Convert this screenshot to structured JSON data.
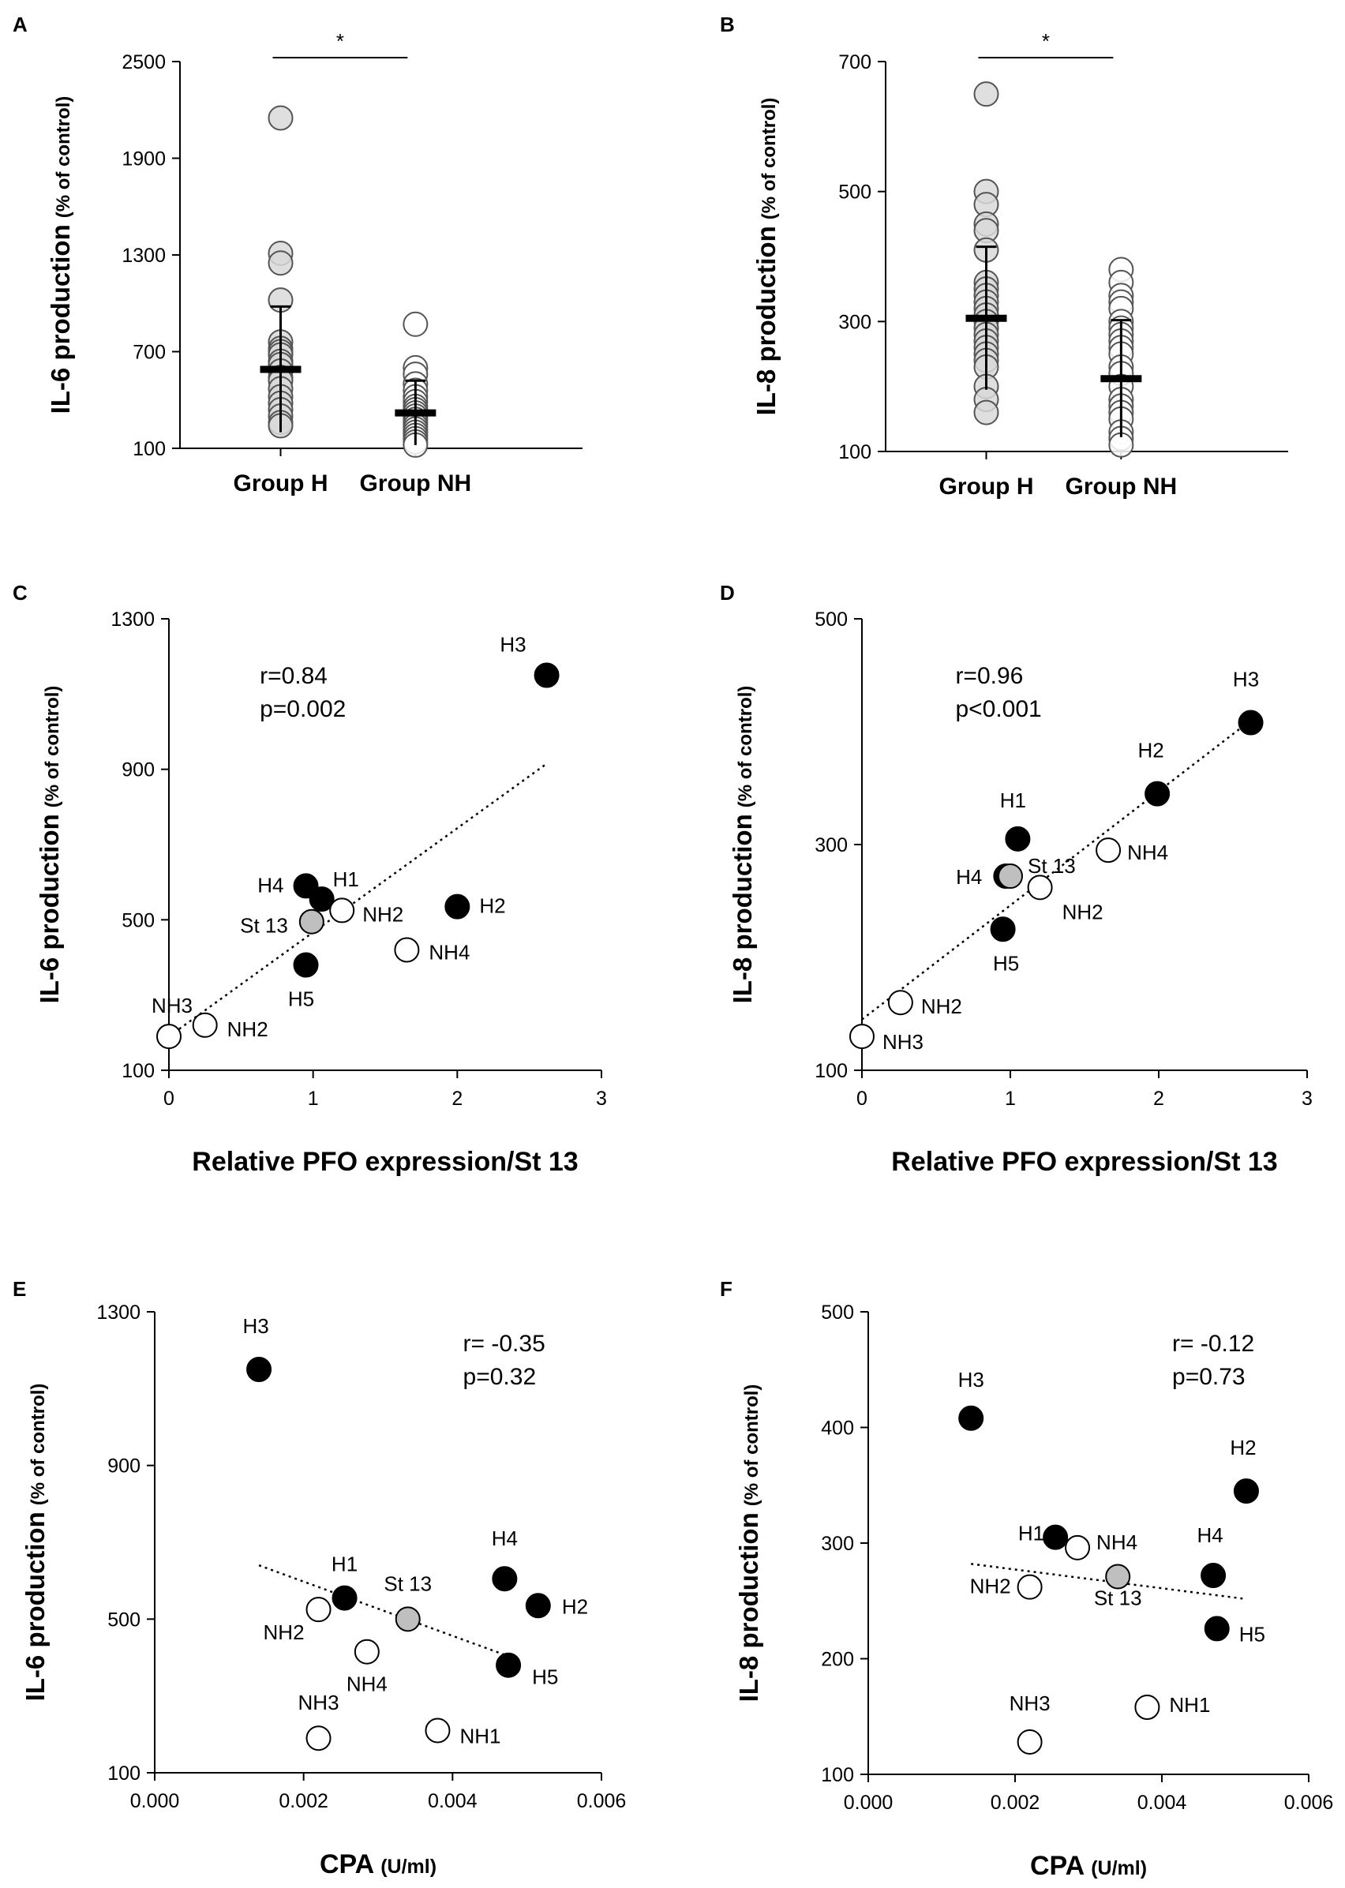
{
  "chart_data": [
    {
      "id": "A",
      "type": "scatter",
      "panel_label": "A",
      "ylabel": "IL-6 production",
      "ylabel_sub": "(% of control)",
      "yticks": [
        "2500",
        "1900",
        "1300",
        "700",
        "100"
      ],
      "ylim": [
        100,
        2500
      ],
      "categories": [
        "Group H",
        "Group NH"
      ],
      "significance": "*",
      "series": [
        {
          "name": "Group H",
          "fill": "#d9d9d9",
          "values": [
            2150,
            1310,
            1250,
            1020,
            760,
            720,
            700,
            680,
            640,
            620,
            580,
            540,
            520,
            470,
            420,
            380,
            340,
            300,
            260,
            240
          ],
          "mean": 590,
          "sd": 390
        },
        {
          "name": "Group NH",
          "fill": "#ffffff",
          "values": [
            870,
            600,
            560,
            500,
            460,
            420,
            390,
            360,
            340,
            320,
            300,
            280,
            260,
            240,
            220,
            200,
            180,
            160,
            140,
            120
          ],
          "mean": 320,
          "sd": 200
        }
      ]
    },
    {
      "id": "B",
      "type": "scatter",
      "panel_label": "B",
      "ylabel": "IL-8 production",
      "ylabel_sub": "(% of control)",
      "yticks": [
        "700",
        "500",
        "300",
        "100"
      ],
      "ylim": [
        100,
        700
      ],
      "categories": [
        "Group H",
        "Group NH"
      ],
      "significance": "*",
      "series": [
        {
          "name": "Group H",
          "fill": "#d9d9d9",
          "values": [
            650,
            500,
            480,
            450,
            440,
            410,
            360,
            350,
            340,
            330,
            320,
            310,
            300,
            290,
            280,
            270,
            260,
            250,
            240,
            230,
            200,
            180,
            160
          ],
          "mean": 305,
          "sd": 110
        },
        {
          "name": "Group NH",
          "fill": "#ffffff",
          "values": [
            380,
            360,
            340,
            330,
            320,
            300,
            290,
            280,
            270,
            260,
            250,
            230,
            220,
            200,
            180,
            170,
            160,
            150,
            130,
            120,
            110
          ],
          "mean": 212,
          "sd": 90
        }
      ]
    },
    {
      "id": "C",
      "type": "scatter",
      "panel_label": "C",
      "xlabel": "Relative PFO expression/St 13",
      "ylabel": "IL-6 production",
      "ylabel_sub": "(% of control)",
      "xticks": [
        "0",
        "1",
        "2",
        "3"
      ],
      "yticks": [
        "1300",
        "900",
        "500",
        "100"
      ],
      "xlim": [
        0,
        3
      ],
      "ylim": [
        100,
        1300
      ],
      "stats": [
        "r=0.84",
        "p=0.002"
      ],
      "trend": [
        [
          0,
          190
        ],
        [
          2.62,
          915
        ]
      ],
      "points": [
        {
          "label": "H3",
          "x": 2.62,
          "y": 1150,
          "fill": "#000000"
        },
        {
          "label": "H4",
          "x": 0.95,
          "y": 590,
          "fill": "#000000"
        },
        {
          "label": "H1",
          "x": 1.06,
          "y": 555,
          "fill": "#000000"
        },
        {
          "label": "H2",
          "x": 2.0,
          "y": 535,
          "fill": "#000000"
        },
        {
          "label": "St 13",
          "x": 0.99,
          "y": 495,
          "fill": "#bfbfbf"
        },
        {
          "label": "NH2",
          "x": 1.2,
          "y": 525,
          "fill": "#ffffff"
        },
        {
          "label": "NH4",
          "x": 1.65,
          "y": 420,
          "fill": "#ffffff"
        },
        {
          "label": "H5",
          "x": 0.95,
          "y": 380,
          "fill": "#000000"
        },
        {
          "label": "NH3",
          "x": 0.0,
          "y": 190,
          "fill": "#ffffff"
        },
        {
          "label": "NH2",
          "x": 0.25,
          "y": 220,
          "fill": "#ffffff"
        }
      ]
    },
    {
      "id": "D",
      "type": "scatter",
      "panel_label": "D",
      "xlabel": "Relative PFO expression/St 13",
      "ylabel": "IL-8 production",
      "ylabel_sub": "(% of control)",
      "xticks": [
        "0",
        "1",
        "2",
        "3"
      ],
      "yticks": [
        "500",
        "300",
        "100"
      ],
      "xlim": [
        0,
        3
      ],
      "ylim": [
        100,
        500
      ],
      "stats": [
        "r=0.96",
        "p<0.001"
      ],
      "trend": [
        [
          0,
          145
        ],
        [
          2.62,
          410
        ]
      ],
      "points": [
        {
          "label": "H3",
          "x": 2.62,
          "y": 408,
          "fill": "#000000"
        },
        {
          "label": "H2",
          "x": 1.99,
          "y": 345,
          "fill": "#000000"
        },
        {
          "label": "H1",
          "x": 1.05,
          "y": 305,
          "fill": "#000000"
        },
        {
          "label": "H4",
          "x": 0.97,
          "y": 272,
          "fill": "#000000"
        },
        {
          "label": "St 13",
          "x": 1.0,
          "y": 272,
          "fill": "#bfbfbf"
        },
        {
          "label": "NH4",
          "x": 1.66,
          "y": 295,
          "fill": "#ffffff"
        },
        {
          "label": "NH2",
          "x": 1.2,
          "y": 262,
          "fill": "#ffffff"
        },
        {
          "label": "H5",
          "x": 0.95,
          "y": 225,
          "fill": "#000000"
        },
        {
          "label": "NH2",
          "x": 0.26,
          "y": 160,
          "fill": "#ffffff"
        },
        {
          "label": "NH3",
          "x": 0.0,
          "y": 130,
          "fill": "#ffffff"
        }
      ]
    },
    {
      "id": "E",
      "type": "scatter",
      "panel_label": "E",
      "xlabel": "CPA",
      "xlabel_sub": "(U/ml)",
      "ylabel": "IL-6 production",
      "ylabel_sub": "(% of control)",
      "xticks": [
        "0.000",
        "0.002",
        "0.004",
        "0.006"
      ],
      "yticks": [
        "1300",
        "900",
        "500",
        "100"
      ],
      "xlim": [
        0,
        0.006
      ],
      "ylim": [
        100,
        1300
      ],
      "stats": [
        "r= -0.35",
        "p=0.32"
      ],
      "trend": [
        [
          0.0014,
          640
        ],
        [
          0.0048,
          400
        ]
      ],
      "points": [
        {
          "label": "H3",
          "x": 0.0014,
          "y": 1150,
          "fill": "#000000"
        },
        {
          "label": "H1",
          "x": 0.00255,
          "y": 555,
          "fill": "#000000"
        },
        {
          "label": "H4",
          "x": 0.0047,
          "y": 605,
          "fill": "#000000"
        },
        {
          "label": "H2",
          "x": 0.00515,
          "y": 535,
          "fill": "#000000"
        },
        {
          "label": "H5",
          "x": 0.00475,
          "y": 380,
          "fill": "#000000"
        },
        {
          "label": "St 13",
          "x": 0.0034,
          "y": 500,
          "fill": "#bfbfbf"
        },
        {
          "label": "NH2",
          "x": 0.0022,
          "y": 525,
          "fill": "#ffffff"
        },
        {
          "label": "NH4",
          "x": 0.00285,
          "y": 415,
          "fill": "#ffffff"
        },
        {
          "label": "NH3",
          "x": 0.0022,
          "y": 190,
          "fill": "#ffffff"
        },
        {
          "label": "NH1",
          "x": 0.0038,
          "y": 210,
          "fill": "#ffffff"
        }
      ]
    },
    {
      "id": "F",
      "type": "scatter",
      "panel_label": "F",
      "xlabel": "CPA",
      "xlabel_sub": "(U/ml)",
      "ylabel": "IL-8 production",
      "ylabel_sub": "(% of control)",
      "xticks": [
        "0.000",
        "0.002",
        "0.004",
        "0.006"
      ],
      "yticks": [
        "500",
        "400",
        "300",
        "200",
        "100"
      ],
      "xlim": [
        0,
        0.006
      ],
      "ylim": [
        100,
        500
      ],
      "stats": [
        "r= -0.12",
        "p=0.73"
      ],
      "trend": [
        [
          0.0014,
          282
        ],
        [
          0.0051,
          252
        ]
      ],
      "points": [
        {
          "label": "H3",
          "x": 0.0014,
          "y": 408,
          "fill": "#000000"
        },
        {
          "label": "H2",
          "x": 0.00515,
          "y": 345,
          "fill": "#000000"
        },
        {
          "label": "H1",
          "x": 0.00255,
          "y": 305,
          "fill": "#000000"
        },
        {
          "label": "NH4",
          "x": 0.00285,
          "y": 296,
          "fill": "#ffffff"
        },
        {
          "label": "H4",
          "x": 0.0047,
          "y": 272,
          "fill": "#000000"
        },
        {
          "label": "St 13",
          "x": 0.0034,
          "y": 271,
          "fill": "#bfbfbf"
        },
        {
          "label": "NH2",
          "x": 0.0022,
          "y": 262,
          "fill": "#ffffff"
        },
        {
          "label": "H5",
          "x": 0.00475,
          "y": 226,
          "fill": "#000000"
        },
        {
          "label": "NH3",
          "x": 0.0022,
          "y": 128,
          "fill": "#ffffff"
        },
        {
          "label": "NH1",
          "x": 0.0038,
          "y": 158,
          "fill": "#ffffff"
        }
      ]
    }
  ]
}
